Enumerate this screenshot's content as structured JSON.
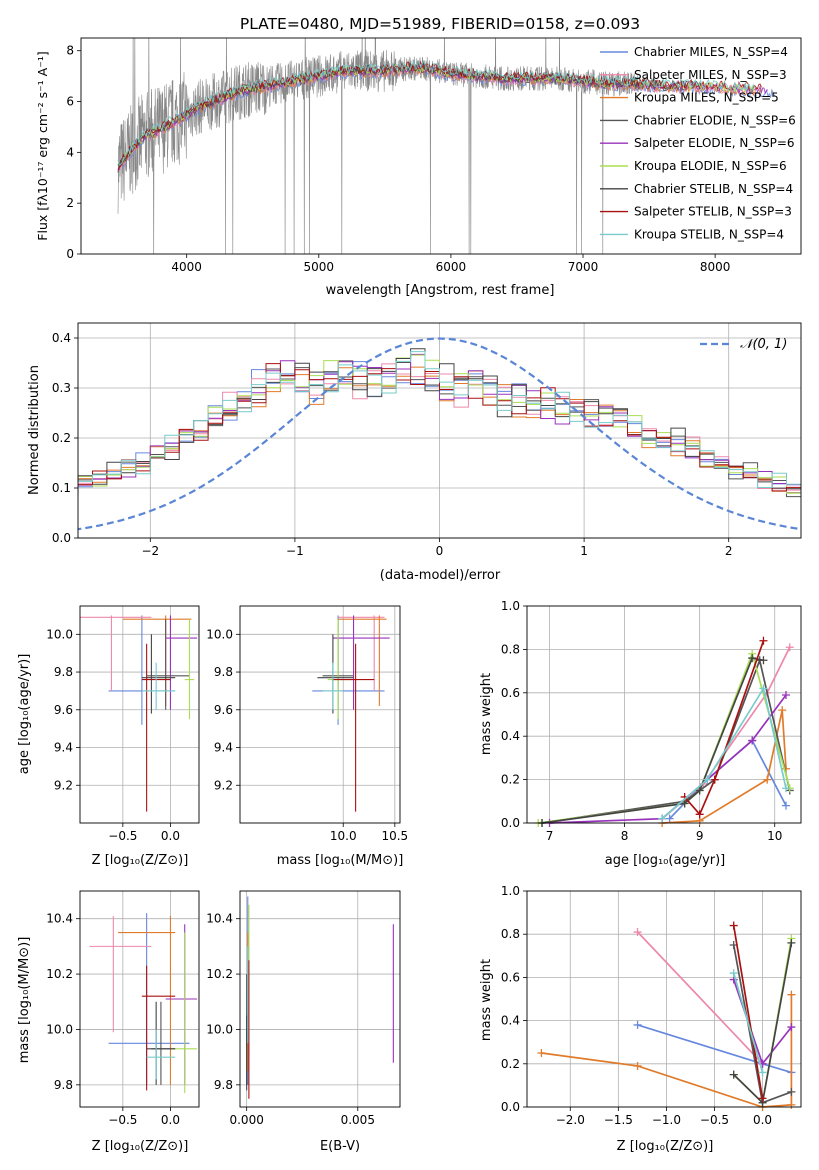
{
  "figure": {
    "title": "PLATE=0480, MJD=51989, FIBERID=0158, z=0.093"
  },
  "colors": {
    "models": [
      "#6688dd",
      "#ee88aa",
      "#e07b2b",
      "#555555",
      "#9933bb",
      "#aadd55",
      "#444444",
      "#aa1111",
      "#77cccc"
    ],
    "data": "#888888",
    "gauss": "#5b86d6",
    "grid": "#b0b0b0"
  },
  "chart_data": [
    {
      "id": "spectrum",
      "type": "line",
      "xlabel": "wavelength [Angstrom, rest frame]",
      "ylabel": "Flux [fλ10⁻¹⁷ erg cm⁻² s⁻¹ A⁻¹]",
      "xlim": [
        3200,
        8650
      ],
      "ylim": [
        0,
        8.5
      ],
      "xticks": [
        4000,
        5000,
        6000,
        7000,
        8000
      ],
      "yticks": [
        0,
        2,
        4,
        6,
        8
      ],
      "grid": false,
      "legend_position": "top-right",
      "legend": [
        "Chabrier MILES, N_SSP=4",
        "Salpeter MILES, N_SSP=3",
        "Kroupa MILES, N_SSP=5",
        "Chabrier ELODIE, N_SSP=6",
        "Salpeter ELODIE, N_SSP=6",
        "Kroupa ELODIE, N_SSP=6",
        "Chabrier STELIB, N_SSP=4",
        "Salpeter STELIB, N_SSP=3",
        "Kroupa STELIB, N_SSP=4"
      ],
      "model_envelope": {
        "x": [
          3480,
          3600,
          3700,
          3800,
          3900,
          4000,
          4100,
          4200,
          4300,
          4400,
          4500,
          4600,
          4700,
          4800,
          4900,
          5000,
          5100,
          5200,
          5300,
          5400,
          5500,
          5600,
          5700,
          5800,
          5900,
          6000,
          6200,
          6400,
          6600,
          6800,
          7000,
          7200,
          7400,
          7600,
          7800,
          8000,
          8200,
          8400
        ],
        "y": [
          3.4,
          4.2,
          4.7,
          4.9,
          5.2,
          5.5,
          5.8,
          6.0,
          6.2,
          6.4,
          6.5,
          6.6,
          6.7,
          6.8,
          6.9,
          7.0,
          7.1,
          7.2,
          7.2,
          7.2,
          7.2,
          7.25,
          7.3,
          7.3,
          7.2,
          7.1,
          7.0,
          6.9,
          6.9,
          6.9,
          6.8,
          6.7,
          6.7,
          6.6,
          6.6,
          6.55,
          6.5,
          6.45
        ]
      }
    },
    {
      "id": "residuals",
      "type": "histogram",
      "xlabel": "(data-model)/error",
      "ylabel": "Normed distribution",
      "xlim": [
        -2.5,
        2.5
      ],
      "ylim": [
        0,
        0.43
      ],
      "xticks": [
        -2,
        -1,
        0,
        1,
        2
      ],
      "yticks": [
        0.0,
        0.1,
        0.2,
        0.3,
        0.4
      ],
      "grid": true,
      "legend_position": "top-right",
      "gauss_label": "𝒩(0, 1)",
      "bin_width": 0.1,
      "base_hist": [
        0.04,
        0.045,
        0.05,
        0.055,
        0.06,
        0.065,
        0.07,
        0.08,
        0.09,
        0.1,
        0.11,
        0.12,
        0.13,
        0.14,
        0.15,
        0.165,
        0.18,
        0.2,
        0.22,
        0.24,
        0.26,
        0.28,
        0.3,
        0.31,
        0.32,
        0.315,
        0.31,
        0.32,
        0.325,
        0.32,
        0.315,
        0.32,
        0.33,
        0.335,
        0.32,
        0.31,
        0.3,
        0.3,
        0.29,
        0.28,
        0.28,
        0.27,
        0.27,
        0.26,
        0.255,
        0.25,
        0.24,
        0.235,
        0.22,
        0.21,
        0.2,
        0.19,
        0.18,
        0.165,
        0.15,
        0.14,
        0.13,
        0.12,
        0.11,
        0.1,
        0.09,
        0.08,
        0.075,
        0.07,
        0.065,
        0.06,
        0.055,
        0.05,
        0.048,
        0.045
      ]
    },
    {
      "id": "age_vs_Z",
      "type": "errorbar",
      "xlabel": "Z [log₁₀(Z/Z⊙)]",
      "ylabel": "age  [log₁₀(age/yr)]",
      "xlim": [
        -0.95,
        0.3
      ],
      "ylim": [
        9.0,
        10.15
      ],
      "xticks": [
        -0.5,
        0.0
      ],
      "yticks": [
        9.2,
        9.4,
        9.6,
        9.8,
        10.0
      ],
      "grid": true,
      "points": [
        {
          "x": -0.3,
          "xlo": -0.65,
          "xhi": 0.05,
          "y": 9.7,
          "ylo": 9.52,
          "yhi": 10.1
        },
        {
          "x": -0.62,
          "xlo": -0.95,
          "xhi": -0.2,
          "y": 10.09,
          "ylo": 9.7,
          "yhi": 10.1
        },
        {
          "x": -0.05,
          "xlo": -0.5,
          "xhi": 0.22,
          "y": 10.08,
          "ylo": 9.62,
          "yhi": 10.1
        },
        {
          "x": -0.05,
          "xlo": -0.25,
          "xhi": 0.2,
          "y": 9.78,
          "ylo": 9.6,
          "yhi": 10.08
        },
        {
          "x": 0.0,
          "xlo": -0.05,
          "xhi": 0.28,
          "y": 9.98,
          "ylo": 9.6,
          "yhi": 10.1
        },
        {
          "x": 0.2,
          "xlo": 0.15,
          "xhi": 0.25,
          "y": 9.76,
          "ylo": 9.55,
          "yhi": 10.08
        },
        {
          "x": -0.2,
          "xlo": -0.3,
          "xhi": 0.05,
          "y": 9.77,
          "ylo": 9.58,
          "yhi": 10.0
        },
        {
          "x": -0.25,
          "xlo": -0.3,
          "xhi": 0.0,
          "y": 9.76,
          "ylo": 9.06,
          "yhi": 9.95
        },
        {
          "x": -0.15,
          "xlo": -0.3,
          "xhi": 0.05,
          "y": 9.7,
          "ylo": 9.6,
          "yhi": 9.85
        }
      ]
    },
    {
      "id": "age_vs_mass",
      "type": "errorbar",
      "xlabel": "mass [log₁₀(M/M⊙)]",
      "xlim": [
        9.0,
        10.55
      ],
      "ylim": [
        9.0,
        10.15
      ],
      "xticks": [
        10.0,
        10.5
      ],
      "yticks": [
        9.2,
        9.4,
        9.6,
        9.8,
        10.0
      ],
      "grid": true,
      "points": [
        {
          "x": 9.95,
          "xlo": 9.7,
          "xhi": 10.4,
          "y": 9.7,
          "ylo": 9.52,
          "yhi": 10.1
        },
        {
          "x": 10.3,
          "xlo": 9.95,
          "xhi": 10.4,
          "y": 10.09,
          "ylo": 9.7,
          "yhi": 10.1
        },
        {
          "x": 10.35,
          "xlo": 9.95,
          "xhi": 10.42,
          "y": 10.08,
          "ylo": 9.62,
          "yhi": 10.1
        },
        {
          "x": 9.95,
          "xlo": 9.8,
          "xhi": 10.1,
          "y": 9.78,
          "ylo": 9.6,
          "yhi": 10.08
        },
        {
          "x": 10.1,
          "xlo": 9.9,
          "xhi": 10.45,
          "y": 9.98,
          "ylo": 9.6,
          "yhi": 10.1
        },
        {
          "x": 9.95,
          "xlo": 9.85,
          "xhi": 10.1,
          "y": 9.76,
          "ylo": 9.55,
          "yhi": 10.08
        },
        {
          "x": 9.9,
          "xlo": 9.75,
          "xhi": 10.1,
          "y": 9.77,
          "ylo": 9.58,
          "yhi": 10.0
        },
        {
          "x": 10.12,
          "xlo": 9.9,
          "xhi": 10.3,
          "y": 9.76,
          "ylo": 9.06,
          "yhi": 9.95
        },
        {
          "x": 9.9,
          "xlo": 9.8,
          "xhi": 10.0,
          "y": 9.7,
          "ylo": 9.6,
          "yhi": 9.85
        }
      ]
    },
    {
      "id": "weight_vs_age",
      "type": "line",
      "xlabel": "age  [log₁₀(age/yr)]",
      "ylabel": "mass weight",
      "xlim": [
        6.7,
        10.35
      ],
      "ylim": [
        0,
        1.0
      ],
      "xticks": [
        7,
        8,
        9,
        10
      ],
      "yticks": [
        0.0,
        0.2,
        0.4,
        0.6,
        0.8,
        1.0
      ],
      "grid": true,
      "series": [
        {
          "x": [
            8.6,
            9.1,
            9.7,
            10.15
          ],
          "y": [
            0.02,
            0.2,
            0.38,
            0.08
          ]
        },
        {
          "x": [
            8.5,
            9.05,
            9.9,
            10.2
          ],
          "y": [
            0.02,
            0.18,
            0.6,
            0.81
          ]
        },
        {
          "x": [
            8.5,
            9.0,
            9.9,
            10.1,
            10.15
          ],
          "y": [
            0.0,
            0.01,
            0.2,
            0.52,
            0.25
          ]
        },
        {
          "x": [
            6.9,
            8.8,
            9.2,
            9.8,
            10.2
          ],
          "y": [
            0.0,
            0.1,
            0.2,
            0.75,
            0.15
          ]
        },
        {
          "x": [
            7.0,
            8.5,
            9.1,
            9.7,
            10.15
          ],
          "y": [
            0.0,
            0.02,
            0.2,
            0.38,
            0.59
          ]
        },
        {
          "x": [
            6.85,
            8.8,
            9.0,
            9.7,
            10.2
          ],
          "y": [
            0.0,
            0.09,
            0.15,
            0.78,
            0.16
          ]
        },
        {
          "x": [
            6.9,
            8.8,
            9.0,
            9.7,
            9.85
          ],
          "y": [
            0.0,
            0.09,
            0.15,
            0.76,
            0.75
          ]
        },
        {
          "x": [
            8.8,
            9.0,
            9.2,
            9.85
          ],
          "y": [
            0.12,
            0.04,
            0.2,
            0.84
          ]
        },
        {
          "x": [
            8.5,
            9.1,
            9.85,
            10.15
          ],
          "y": [
            0.02,
            0.2,
            0.62,
            0.16
          ]
        }
      ]
    },
    {
      "id": "mass_vs_Z",
      "type": "errorbar",
      "xlabel": "Z [log₁₀(Z/Z⊙)]",
      "ylabel": "mass [log₁₀(M/M⊙)]",
      "xlim": [
        -0.95,
        0.3
      ],
      "ylim": [
        9.72,
        10.5
      ],
      "xticks": [
        -0.5,
        0.0
      ],
      "yticks": [
        9.8,
        10.0,
        10.2,
        10.4
      ],
      "grid": true,
      "points": [
        {
          "x": -0.25,
          "xlo": -0.65,
          "xhi": 0.2,
          "y": 9.95,
          "ylo": 9.8,
          "yhi": 10.42
        },
        {
          "x": -0.6,
          "xlo": -0.85,
          "xhi": -0.2,
          "y": 10.3,
          "ylo": 9.99,
          "yhi": 10.41
        },
        {
          "x": 0.0,
          "xlo": -0.55,
          "xhi": 0.05,
          "y": 10.35,
          "ylo": 9.8,
          "yhi": 10.41
        },
        {
          "x": -0.1,
          "xlo": -0.2,
          "xhi": 0.05,
          "y": 9.93,
          "ylo": 9.8,
          "yhi": 10.1
        },
        {
          "x": 0.15,
          "xlo": -0.05,
          "xhi": 0.28,
          "y": 10.11,
          "ylo": 9.8,
          "yhi": 10.38
        },
        {
          "x": 0.15,
          "xlo": 0.0,
          "xhi": 0.28,
          "y": 9.93,
          "ylo": 9.77,
          "yhi": 10.35
        },
        {
          "x": -0.15,
          "xlo": -0.25,
          "xhi": 0.05,
          "y": 9.93,
          "ylo": 9.8,
          "yhi": 10.1
        },
        {
          "x": -0.25,
          "xlo": -0.3,
          "xhi": 0.05,
          "y": 10.12,
          "ylo": 9.78,
          "yhi": 10.23
        },
        {
          "x": -0.15,
          "xlo": -0.25,
          "xhi": 0.05,
          "y": 9.9,
          "ylo": 9.82,
          "yhi": 10.0
        }
      ]
    },
    {
      "id": "mass_vs_EBV",
      "type": "errorbar",
      "xlabel": "E(B-V)",
      "xlim": [
        -0.0003,
        0.0069
      ],
      "ylim": [
        9.72,
        10.5
      ],
      "xticks": [
        0.0,
        0.005
      ],
      "xtick_labels": [
        "0.000",
        "0.005"
      ],
      "yticks": [
        9.8,
        10.0,
        10.2,
        10.4
      ],
      "grid": true,
      "points": [
        {
          "x": 5e-05,
          "y": 10.2,
          "ylo": 9.8,
          "yhi": 10.48
        },
        {
          "x": 0.0001,
          "y": 10.1,
          "ylo": 9.9,
          "yhi": 10.3
        },
        {
          "x": 5e-05,
          "y": 10.15,
          "ylo": 9.85,
          "yhi": 10.35
        },
        {
          "x": 0.0,
          "y": 10.0,
          "ylo": 9.8,
          "yhi": 10.2
        },
        {
          "x": 0.0066,
          "y": 10.13,
          "ylo": 9.88,
          "yhi": 10.38
        },
        {
          "x": 0.0001,
          "y": 10.3,
          "ylo": 10.15,
          "yhi": 10.45
        },
        {
          "x": 0.0,
          "y": 9.9,
          "ylo": 9.78,
          "yhi": 10.05
        },
        {
          "x": 0.0001,
          "y": 10.0,
          "ylo": 9.75,
          "yhi": 10.25
        },
        {
          "x": 5e-05,
          "y": 10.1,
          "ylo": 9.95,
          "yhi": 10.3
        }
      ]
    },
    {
      "id": "weight_vs_Z",
      "type": "line",
      "xlabel": "Z [log₁₀(Z/Z⊙)]",
      "ylabel": "mass weight",
      "xlim": [
        -2.45,
        0.4
      ],
      "ylim": [
        0,
        1.0
      ],
      "xticks": [
        -2.0,
        -1.5,
        -1.0,
        -0.5,
        0.0
      ],
      "yticks": [
        0.0,
        0.2,
        0.4,
        0.6,
        0.8,
        1.0
      ],
      "grid": true,
      "series": [
        {
          "x": [
            -1.3,
            0.0,
            0.3
          ],
          "y": [
            0.38,
            0.2,
            0.16
          ]
        },
        {
          "x": [
            -1.3,
            0.0
          ],
          "y": [
            0.81,
            0.2
          ]
        },
        {
          "x": [
            -2.3,
            -1.3,
            0.0,
            0.3,
            0.3
          ],
          "y": [
            0.25,
            0.19,
            0.0,
            0.01,
            0.52
          ]
        },
        {
          "x": [
            -0.3,
            0.0,
            0.3
          ],
          "y": [
            0.75,
            0.02,
            0.07
          ]
        },
        {
          "x": [
            -0.3,
            0.0,
            0.3
          ],
          "y": [
            0.59,
            0.2,
            0.37
          ]
        },
        {
          "x": [
            -0.3,
            0.0,
            0.3
          ],
          "y": [
            0.15,
            0.02,
            0.78
          ]
        },
        {
          "x": [
            -0.3,
            0.0,
            0.3
          ],
          "y": [
            0.15,
            0.02,
            0.76
          ]
        },
        {
          "x": [
            -0.3,
            0.0
          ],
          "y": [
            0.84,
            0.04
          ]
        },
        {
          "x": [
            -0.3,
            0.0
          ],
          "y": [
            0.62,
            0.16
          ]
        }
      ]
    }
  ]
}
